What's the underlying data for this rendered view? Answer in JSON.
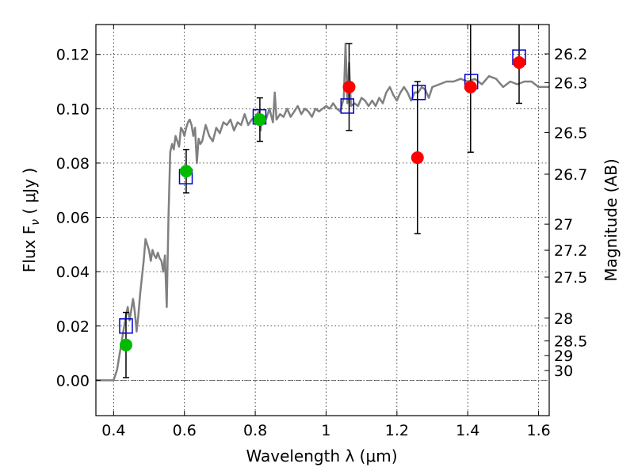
{
  "chart_data": {
    "type": "scatter",
    "xlabel": "Wavelength  λ (μm)",
    "ylabel": "Flux  F",
    "ylabel_sub": "ν",
    "ylabel_unit": "  ( μJy )",
    "y2label": "Magnitude (AB)",
    "xlim": [
      0.35,
      1.63
    ],
    "ylim": [
      -0.013,
      0.131
    ],
    "grid": true,
    "x_ticks": [
      {
        "value": 0.4,
        "label": "0.4"
      },
      {
        "value": 0.6,
        "label": "0.6"
      },
      {
        "value": 0.8,
        "label": "0.8"
      },
      {
        "value": 1.0,
        "label": "1"
      },
      {
        "value": 1.2,
        "label": "1.2"
      },
      {
        "value": 1.4,
        "label": "1.4"
      },
      {
        "value": 1.6,
        "label": "1.6"
      }
    ],
    "y_ticks": [
      {
        "value": 0.0,
        "label": "0.00"
      },
      {
        "value": 0.02,
        "label": "0.02"
      },
      {
        "value": 0.04,
        "label": "0.04"
      },
      {
        "value": 0.06,
        "label": "0.06"
      },
      {
        "value": 0.08,
        "label": "0.08"
      },
      {
        "value": 0.1,
        "label": "0.10"
      },
      {
        "value": 0.12,
        "label": "0.12"
      }
    ],
    "y2_ticks": [
      {
        "flux": 0.1202,
        "label": "26.2"
      },
      {
        "flux": 0.1096,
        "label": "26.3"
      },
      {
        "flux": 0.0912,
        "label": "26.5"
      },
      {
        "flux": 0.0759,
        "label": "26.7"
      },
      {
        "flux": 0.0575,
        "label": "27"
      },
      {
        "flux": 0.0479,
        "label": "27.2"
      },
      {
        "flux": 0.038,
        "label": "27.5"
      },
      {
        "flux": 0.0229,
        "label": "28"
      },
      {
        "flux": 0.0145,
        "label": "28.5"
      },
      {
        "flux": 0.0091,
        "label": "29"
      },
      {
        "flux": 0.0036,
        "label": "30"
      }
    ],
    "colors": {
      "spectrum": "#808080",
      "model": "#0000cc",
      "detections_green": "#00bb00",
      "detections_red": "#ff0000",
      "errorbar": "#000000",
      "zero_line": "#555555"
    },
    "series": [
      {
        "kind": "spectrum",
        "x": [
          0.35,
          0.4,
          0.41,
          0.415,
          0.42,
          0.425,
          0.43,
          0.435,
          0.44,
          0.445,
          0.45,
          0.455,
          0.46,
          0.465,
          0.47,
          0.475,
          0.48,
          0.485,
          0.49,
          0.495,
          0.5,
          0.505,
          0.51,
          0.515,
          0.52,
          0.525,
          0.53,
          0.535,
          0.54,
          0.545,
          0.55,
          0.555,
          0.56,
          0.565,
          0.57,
          0.575,
          0.58,
          0.585,
          0.59,
          0.595,
          0.6,
          0.605,
          0.61,
          0.615,
          0.62,
          0.625,
          0.63,
          0.635,
          0.64,
          0.645,
          0.65,
          0.66,
          0.665,
          0.67,
          0.68,
          0.69,
          0.7,
          0.71,
          0.72,
          0.73,
          0.74,
          0.75,
          0.76,
          0.77,
          0.78,
          0.79,
          0.8,
          0.81,
          0.815,
          0.82,
          0.83,
          0.84,
          0.85,
          0.855,
          0.86,
          0.87,
          0.88,
          0.89,
          0.9,
          0.91,
          0.92,
          0.93,
          0.94,
          0.95,
          0.96,
          0.97,
          0.98,
          0.99,
          1.0,
          1.01,
          1.02,
          1.03,
          1.04,
          1.05,
          1.055,
          1.06,
          1.065,
          1.07,
          1.08,
          1.09,
          1.1,
          1.11,
          1.12,
          1.13,
          1.14,
          1.15,
          1.16,
          1.17,
          1.18,
          1.19,
          1.2,
          1.21,
          1.22,
          1.23,
          1.24,
          1.25,
          1.26,
          1.27,
          1.28,
          1.29,
          1.3,
          1.32,
          1.34,
          1.36,
          1.38,
          1.4,
          1.42,
          1.44,
          1.46,
          1.48,
          1.5,
          1.52,
          1.54,
          1.56,
          1.58,
          1.6,
          1.63
        ],
        "y": [
          0.0,
          0.0,
          0.004,
          0.008,
          0.012,
          0.016,
          0.02,
          0.024,
          0.027,
          0.022,
          0.026,
          0.03,
          0.025,
          0.018,
          0.024,
          0.032,
          0.038,
          0.044,
          0.052,
          0.05,
          0.048,
          0.044,
          0.048,
          0.046,
          0.045,
          0.047,
          0.045,
          0.044,
          0.04,
          0.046,
          0.027,
          0.06,
          0.084,
          0.087,
          0.085,
          0.09,
          0.088,
          0.086,
          0.093,
          0.092,
          0.09,
          0.093,
          0.095,
          0.096,
          0.094,
          0.09,
          0.093,
          0.08,
          0.089,
          0.087,
          0.088,
          0.094,
          0.092,
          0.09,
          0.088,
          0.093,
          0.091,
          0.095,
          0.094,
          0.096,
          0.092,
          0.095,
          0.094,
          0.098,
          0.094,
          0.096,
          0.097,
          0.099,
          0.092,
          0.097,
          0.096,
          0.1,
          0.095,
          0.106,
          0.096,
          0.098,
          0.097,
          0.1,
          0.097,
          0.099,
          0.101,
          0.098,
          0.1,
          0.099,
          0.097,
          0.1,
          0.099,
          0.1,
          0.101,
          0.1,
          0.102,
          0.1,
          0.099,
          0.104,
          0.124,
          0.102,
          0.117,
          0.101,
          0.102,
          0.101,
          0.104,
          0.103,
          0.101,
          0.103,
          0.101,
          0.104,
          0.102,
          0.106,
          0.108,
          0.105,
          0.103,
          0.106,
          0.108,
          0.106,
          0.103,
          0.106,
          0.106,
          0.108,
          0.107,
          0.104,
          0.108,
          0.109,
          0.11,
          0.11,
          0.111,
          0.11,
          0.111,
          0.109,
          0.112,
          0.111,
          0.108,
          0.11,
          0.109,
          0.11,
          0.11,
          0.108,
          0.108
        ]
      },
      {
        "kind": "model",
        "x": [
          0.435,
          0.604,
          0.812,
          1.06,
          1.262,
          1.41,
          1.545
        ],
        "y": [
          0.02,
          0.075,
          0.097,
          0.101,
          0.106,
          0.11,
          0.119
        ]
      },
      {
        "kind": "observed",
        "x": [
          0.435,
          0.605,
          0.813,
          1.065,
          1.258,
          1.408,
          1.545
        ],
        "y": [
          0.013,
          0.077,
          0.096,
          0.108,
          0.082,
          0.108,
          0.117
        ],
        "err": [
          0.012,
          0.008,
          0.008,
          0.016,
          0.028,
          0.024,
          0.015
        ],
        "colors": [
          "green",
          "green",
          "green",
          "red",
          "red",
          "red",
          "red"
        ]
      }
    ]
  }
}
